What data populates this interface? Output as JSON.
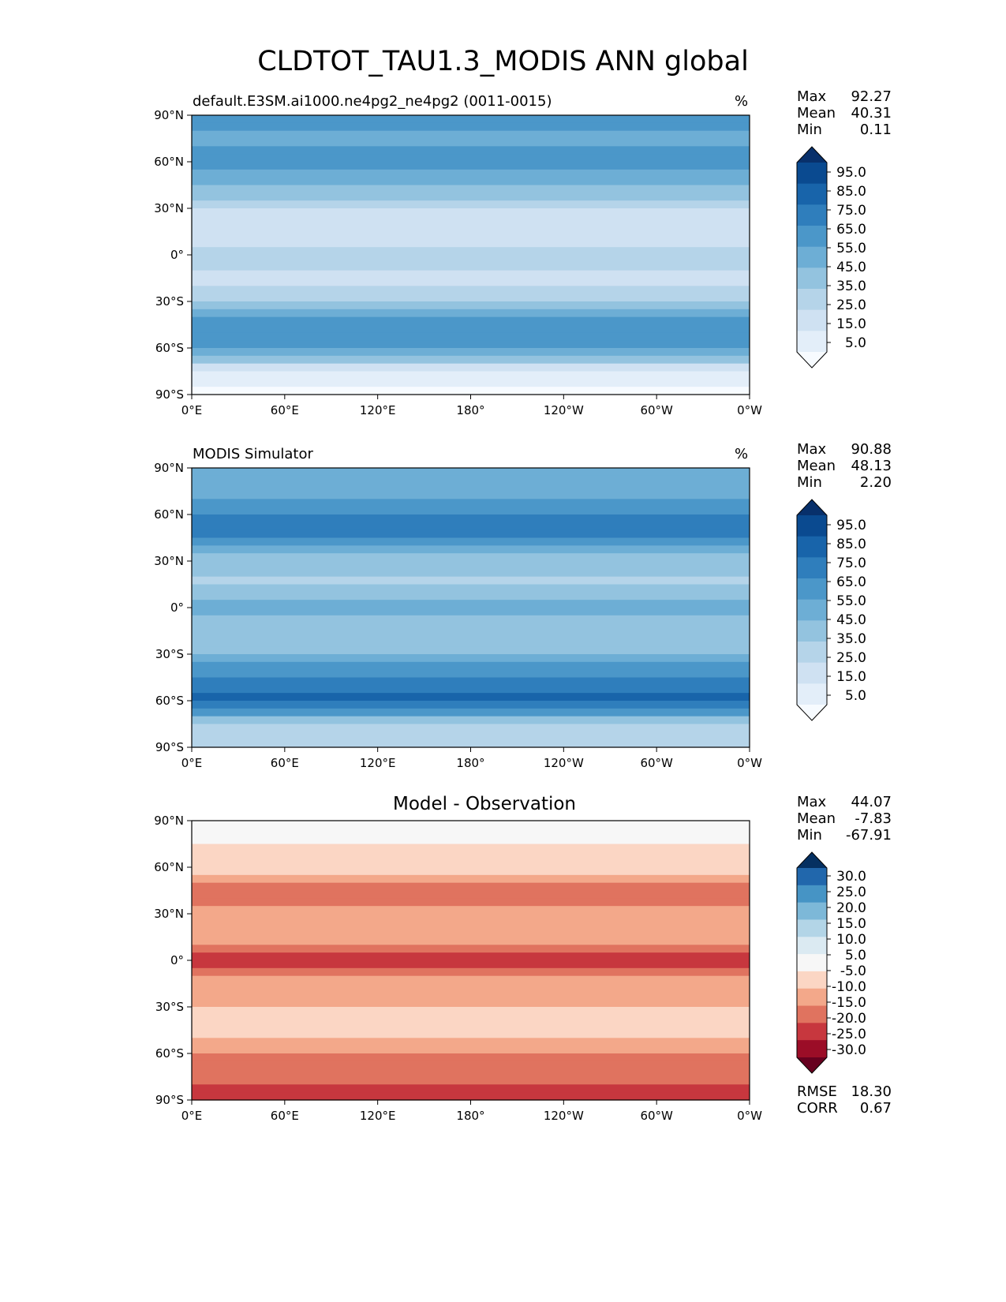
{
  "title": "CLDTOT_TAU1.3_MODIS ANN global",
  "colors": {
    "blues": [
      "#f7fbff",
      "#e3eef9",
      "#cfe1f2",
      "#b5d4e9",
      "#93c3df",
      "#6daed5",
      "#4b97c9",
      "#2f7ebc",
      "#1864aa",
      "#0a4a90",
      "#08306b"
    ],
    "diverging": [
      "#67001f",
      "#9b0d27",
      "#c7373e",
      "#e0735f",
      "#f3a88a",
      "#fbd6c4",
      "#f7f7f7",
      "#dbeaf2",
      "#b3d5e7",
      "#7db8d8",
      "#4694c5",
      "#2167ac",
      "#053061"
    ]
  },
  "x_ticks": [
    "0°E",
    "60°E",
    "120°E",
    "180°",
    "120°W",
    "60°W",
    "0°W"
  ],
  "y_ticks": [
    "90°N",
    "60°N",
    "30°N",
    "0°",
    "30°S",
    "60°S",
    "90°S"
  ],
  "chart_data": [
    {
      "type": "heatmap",
      "title": "default.E3SM.ai1000.ne4pg2_ne4pg2 (0011-0015)",
      "units": "%",
      "stats": {
        "max_label": "Max",
        "max": "92.27",
        "mean_label": "Mean",
        "mean": "40.31",
        "min_label": "Min",
        "min": "0.11"
      },
      "colorbar_levels": [
        "95.0",
        "85.0",
        "75.0",
        "65.0",
        "55.0",
        "45.0",
        "35.0",
        "25.0",
        "15.0",
        "5.0"
      ],
      "colorbar_extend": "both",
      "zonal_profile": [
        {
          "lat": 90,
          "v": 62
        },
        {
          "lat": 75,
          "v": 58
        },
        {
          "lat": 60,
          "v": 62
        },
        {
          "lat": 45,
          "v": 52
        },
        {
          "lat": 30,
          "v": 30
        },
        {
          "lat": 15,
          "v": 25
        },
        {
          "lat": 0,
          "v": 33
        },
        {
          "lat": -15,
          "v": 27
        },
        {
          "lat": -30,
          "v": 40
        },
        {
          "lat": -45,
          "v": 65
        },
        {
          "lat": -55,
          "v": 70
        },
        {
          "lat": -65,
          "v": 52
        },
        {
          "lat": -75,
          "v": 18
        },
        {
          "lat": -90,
          "v": 8
        }
      ]
    },
    {
      "type": "heatmap",
      "title": "MODIS Simulator",
      "units": "%",
      "stats": {
        "max_label": "Max",
        "max": "90.88",
        "mean_label": "Mean",
        "mean": "48.13",
        "min_label": "Min",
        "min": "2.20"
      },
      "colorbar_levels": [
        "95.0",
        "85.0",
        "75.0",
        "65.0",
        "55.0",
        "45.0",
        "35.0",
        "25.0",
        "15.0",
        "5.0"
      ],
      "colorbar_extend": "both",
      "zonal_profile": [
        {
          "lat": 90,
          "v": 60
        },
        {
          "lat": 75,
          "v": 55
        },
        {
          "lat": 60,
          "v": 70
        },
        {
          "lat": 45,
          "v": 72
        },
        {
          "lat": 30,
          "v": 45
        },
        {
          "lat": 15,
          "v": 38
        },
        {
          "lat": 0,
          "v": 55
        },
        {
          "lat": -15,
          "v": 40
        },
        {
          "lat": -30,
          "v": 50
        },
        {
          "lat": -45,
          "v": 72
        },
        {
          "lat": -55,
          "v": 82
        },
        {
          "lat": -65,
          "v": 75
        },
        {
          "lat": -75,
          "v": 35
        },
        {
          "lat": -90,
          "v": 30
        }
      ]
    },
    {
      "type": "heatmap",
      "title": "Model - Observation",
      "stats": {
        "max_label": "Max",
        "max": "44.07",
        "mean_label": "Mean",
        "mean": "-7.83",
        "min_label": "Min",
        "min": "-67.91"
      },
      "colorbar_levels": [
        "30.0",
        "25.0",
        "20.0",
        "15.0",
        "10.0",
        "5.0",
        "-5.0",
        "-10.0",
        "-15.0",
        "-20.0",
        "-25.0",
        "-30.0"
      ],
      "colorbar_extend": "both",
      "metrics": {
        "rmse_label": "RMSE",
        "rmse": "18.30",
        "corr_label": "CORR",
        "corr": "0.67"
      },
      "zonal_profile": [
        {
          "lat": 90,
          "v": 2
        },
        {
          "lat": 75,
          "v": -5
        },
        {
          "lat": 60,
          "v": -8
        },
        {
          "lat": 45,
          "v": -18
        },
        {
          "lat": 30,
          "v": -12
        },
        {
          "lat": 15,
          "v": -13
        },
        {
          "lat": 0,
          "v": -22
        },
        {
          "lat": -15,
          "v": -13
        },
        {
          "lat": -30,
          "v": -10
        },
        {
          "lat": -45,
          "v": -7
        },
        {
          "lat": -55,
          "v": -12
        },
        {
          "lat": -65,
          "v": -20
        },
        {
          "lat": -75,
          "v": -18
        },
        {
          "lat": -90,
          "v": -22
        }
      ]
    }
  ]
}
